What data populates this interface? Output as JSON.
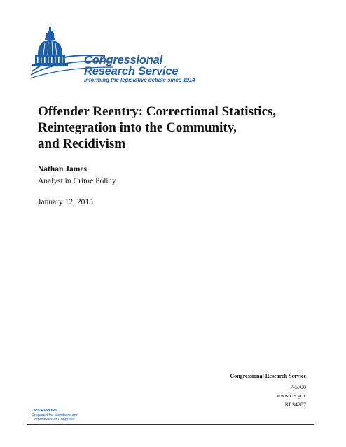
{
  "logo": {
    "line1": "Congressional",
    "line2": "Research Service",
    "tagline": "Informing the legislative debate since 1914",
    "color": "#1f5fa8"
  },
  "title": {
    "line1": "Offender Reentry: Correctional Statistics,",
    "line2": "Reintegration into the Community,",
    "line3": "and Recidivism"
  },
  "author": {
    "name": "Nathan James",
    "role": "Analyst in Crime Policy"
  },
  "date": "January 12, 2015",
  "contact": {
    "org": "Congressional Research Service",
    "phone": "7-5700",
    "website": "www.crs.gov",
    "report_number": "RL34287"
  },
  "footer": {
    "label": "CRS REPORT",
    "line1": "Prepared for Members and",
    "line2": "Committees of Congress"
  }
}
